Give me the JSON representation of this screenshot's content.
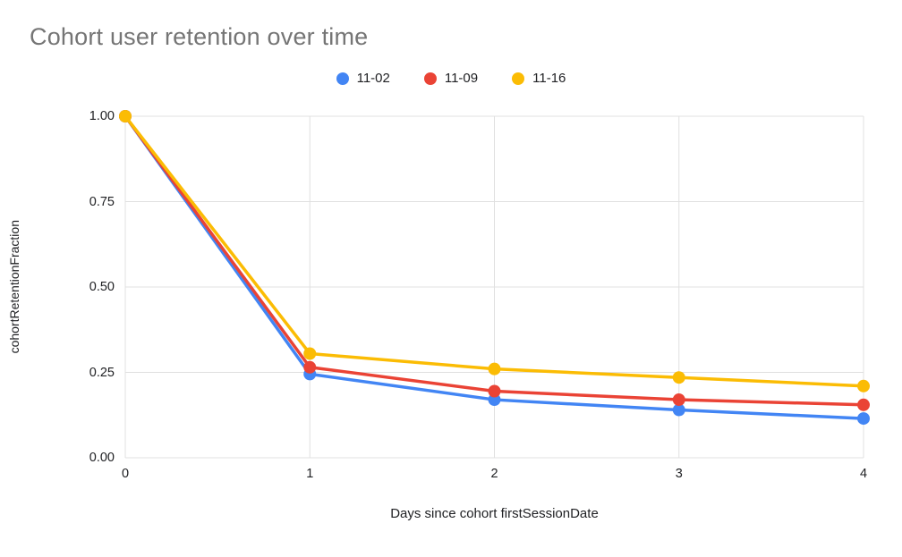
{
  "chart_data": {
    "type": "line",
    "title": "Cohort user retention over time",
    "xlabel": "Days since cohort firstSessionDate",
    "ylabel": "cohortRetentionFraction",
    "categories": [
      "0",
      "1",
      "2",
      "3",
      "4"
    ],
    "x": [
      0,
      1,
      2,
      3,
      4
    ],
    "ylim": [
      0,
      1
    ],
    "yticks": [
      0,
      0.25,
      0.5,
      0.75,
      1
    ],
    "grid": true,
    "legend_position": "top",
    "series": [
      {
        "name": "11-02",
        "color": "#4285F4",
        "values": [
          1.0,
          0.245,
          0.17,
          0.14,
          0.115
        ]
      },
      {
        "name": "11-09",
        "color": "#EA4335",
        "values": [
          1.0,
          0.265,
          0.195,
          0.17,
          0.155
        ]
      },
      {
        "name": "11-16",
        "color": "#FBBC04",
        "values": [
          1.0,
          0.305,
          0.26,
          0.235,
          0.21
        ]
      }
    ],
    "style": {
      "grid_color": "#e0e0e0",
      "title_color": "#757575",
      "tick_color": "#202124",
      "background": "#ffffff",
      "line_width": 3.5,
      "point_radius": 7
    }
  }
}
